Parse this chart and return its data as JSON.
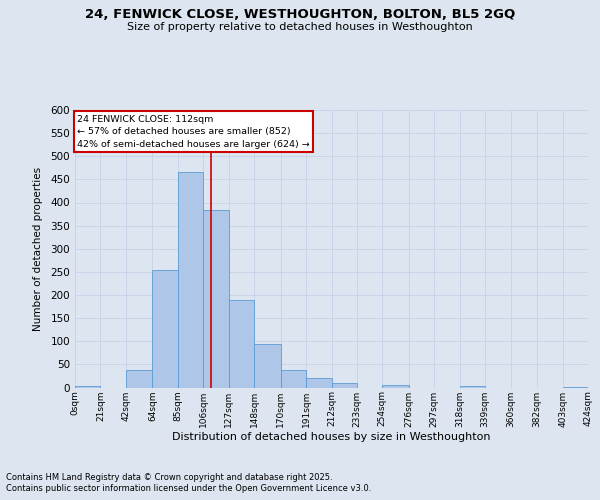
{
  "title_line1": "24, FENWICK CLOSE, WESTHOUGHTON, BOLTON, BL5 2GQ",
  "title_line2": "Size of property relative to detached houses in Westhoughton",
  "xlabel": "Distribution of detached houses by size in Westhoughton",
  "ylabel": "Number of detached properties",
  "bin_labels": [
    "0sqm",
    "21sqm",
    "42sqm",
    "64sqm",
    "85sqm",
    "106sqm",
    "127sqm",
    "148sqm",
    "170sqm",
    "191sqm",
    "212sqm",
    "233sqm",
    "254sqm",
    "276sqm",
    "297sqm",
    "318sqm",
    "339sqm",
    "360sqm",
    "382sqm",
    "403sqm",
    "424sqm"
  ],
  "bin_edges": [
    0,
    21,
    42,
    64,
    85,
    106,
    127,
    148,
    170,
    191,
    212,
    233,
    254,
    276,
    297,
    318,
    339,
    360,
    382,
    403,
    424
  ],
  "bar_heights": [
    3,
    0,
    37,
    254,
    467,
    383,
    190,
    93,
    37,
    20,
    10,
    0,
    5,
    0,
    0,
    4,
    0,
    0,
    0,
    2
  ],
  "bar_color": "#aec6e8",
  "bar_edgecolor": "#5b9bd5",
  "grid_color": "#c8d4e8",
  "property_line_x": 112,
  "property_line_color": "#cc0000",
  "ylim": [
    0,
    600
  ],
  "yticks": [
    0,
    50,
    100,
    150,
    200,
    250,
    300,
    350,
    400,
    450,
    500,
    550,
    600
  ],
  "annotation_line1": "24 FENWICK CLOSE: 112sqm",
  "annotation_line2": "← 57% of detached houses are smaller (852)",
  "annotation_line3": "42% of semi-detached houses are larger (624) →",
  "annotation_box_color": "#ffffff",
  "annotation_box_edgecolor": "#cc0000",
  "footnote1": "Contains HM Land Registry data © Crown copyright and database right 2025.",
  "footnote2": "Contains public sector information licensed under the Open Government Licence v3.0.",
  "background_color": "#dde6f0",
  "plot_bg_color": "#dde6f0"
}
